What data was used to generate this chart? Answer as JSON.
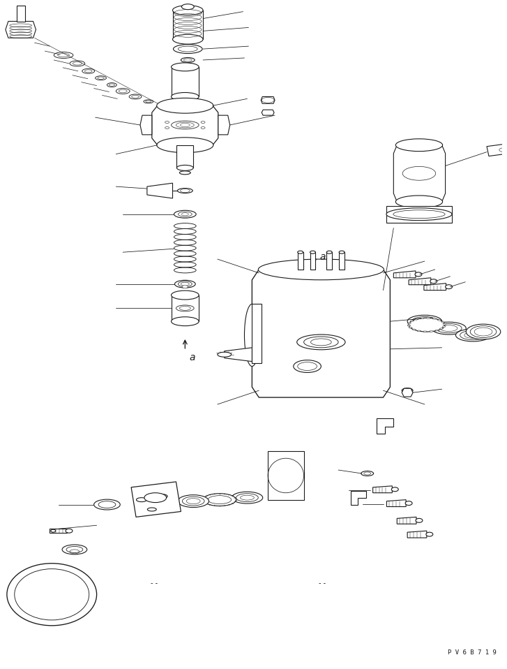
{
  "background_color": "#ffffff",
  "line_color": "#1a1a1a",
  "lw": 0.8,
  "watermark": "P V 6 B 7 1 9",
  "figsize": [
    7.27,
    9.58
  ],
  "dpi": 100
}
